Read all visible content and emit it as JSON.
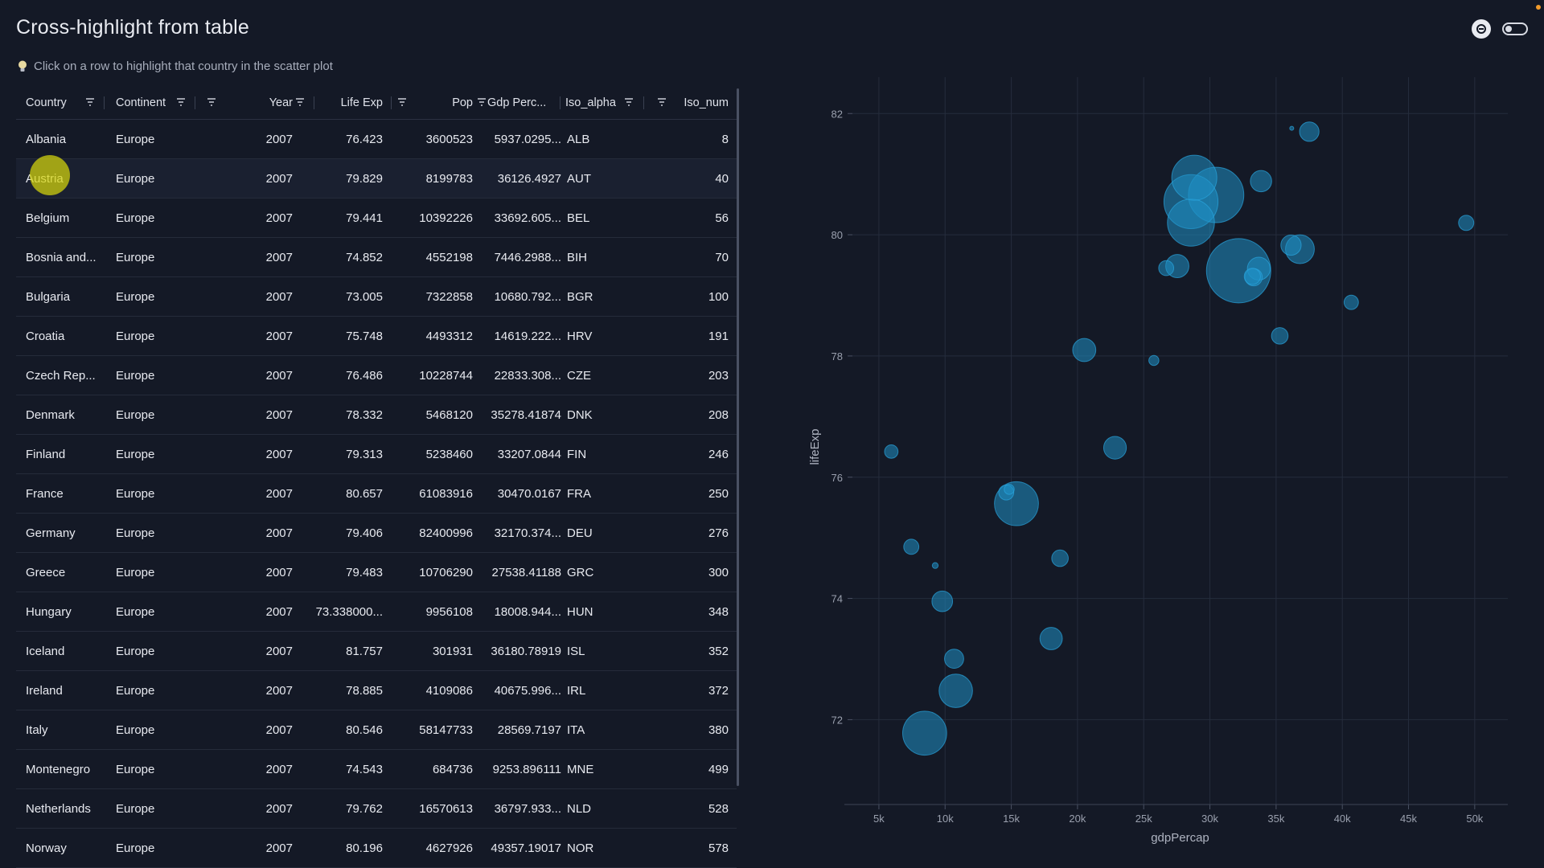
{
  "page": {
    "title": "Cross-highlight from table",
    "hint": "Click on a row to highlight that country in the scatter plot",
    "hint_icon": "lightbulb-icon"
  },
  "toolbar": {
    "icons": [
      "theme-icon",
      "toggle-switch"
    ],
    "toggle_on": false
  },
  "table": {
    "columns": [
      "Country",
      "Continent",
      "Year",
      "Life Exp",
      "Pop",
      "Gdp Perc...",
      "Iso_alpha",
      "Iso_num"
    ],
    "rows": [
      [
        "Albania",
        "Europe",
        "2007",
        "76.423",
        "3600523",
        "5937.0295...",
        "ALB",
        "8"
      ],
      [
        "Austria",
        "Europe",
        "2007",
        "79.829",
        "8199783",
        "36126.4927",
        "AUT",
        "40"
      ],
      [
        "Belgium",
        "Europe",
        "2007",
        "79.441",
        "10392226",
        "33692.605...",
        "BEL",
        "56"
      ],
      [
        "Bosnia and...",
        "Europe",
        "2007",
        "74.852",
        "4552198",
        "7446.2988...",
        "BIH",
        "70"
      ],
      [
        "Bulgaria",
        "Europe",
        "2007",
        "73.005",
        "7322858",
        "10680.792...",
        "BGR",
        "100"
      ],
      [
        "Croatia",
        "Europe",
        "2007",
        "75.748",
        "4493312",
        "14619.222...",
        "HRV",
        "191"
      ],
      [
        "Czech Rep...",
        "Europe",
        "2007",
        "76.486",
        "10228744",
        "22833.308...",
        "CZE",
        "203"
      ],
      [
        "Denmark",
        "Europe",
        "2007",
        "78.332",
        "5468120",
        "35278.41874",
        "DNK",
        "208"
      ],
      [
        "Finland",
        "Europe",
        "2007",
        "79.313",
        "5238460",
        "33207.0844",
        "FIN",
        "246"
      ],
      [
        "France",
        "Europe",
        "2007",
        "80.657",
        "61083916",
        "30470.0167",
        "FRA",
        "250"
      ],
      [
        "Germany",
        "Europe",
        "2007",
        "79.406",
        "82400996",
        "32170.374...",
        "DEU",
        "276"
      ],
      [
        "Greece",
        "Europe",
        "2007",
        "79.483",
        "10706290",
        "27538.41188",
        "GRC",
        "300"
      ],
      [
        "Hungary",
        "Europe",
        "2007",
        "73.338000...",
        "9956108",
        "18008.944...",
        "HUN",
        "348"
      ],
      [
        "Iceland",
        "Europe",
        "2007",
        "81.757",
        "301931",
        "36180.78919",
        "ISL",
        "352"
      ],
      [
        "Ireland",
        "Europe",
        "2007",
        "78.885",
        "4109086",
        "40675.996...",
        "IRL",
        "372"
      ],
      [
        "Italy",
        "Europe",
        "2007",
        "80.546",
        "58147733",
        "28569.7197",
        "ITA",
        "380"
      ],
      [
        "Montenegro",
        "Europe",
        "2007",
        "74.543",
        "684736",
        "9253.896111",
        "MNE",
        "499"
      ],
      [
        "Netherlands",
        "Europe",
        "2007",
        "79.762",
        "16570613",
        "36797.933...",
        "NLD",
        "528"
      ],
      [
        "Norway",
        "Europe",
        "2007",
        "80.196",
        "4627926",
        "49357.19017",
        "NOR",
        "578"
      ]
    ],
    "hovered_row": 1
  },
  "chart_data": {
    "type": "scatter",
    "xlabel": "gdpPercap",
    "ylabel": "lifeExp",
    "xlim": [
      3000,
      52500
    ],
    "ylim": [
      70.6,
      82.6
    ],
    "x_ticks": [
      "5k",
      "10k",
      "15k",
      "20k",
      "25k",
      "30k",
      "35k",
      "40k",
      "45k",
      "50k"
    ],
    "x_tick_values": [
      5000,
      10000,
      15000,
      20000,
      25000,
      30000,
      35000,
      40000,
      45000,
      50000
    ],
    "y_ticks": [
      "72",
      "74",
      "76",
      "78",
      "80",
      "82"
    ],
    "y_tick_values": [
      72,
      74,
      76,
      78,
      80,
      82
    ],
    "grid": true,
    "marker_color": "#1f8fc4",
    "points": [
      {
        "x": 5937,
        "y": 76.423,
        "pop": 3600523
      },
      {
        "x": 36126,
        "y": 79.829,
        "pop": 8199783
      },
      {
        "x": 33693,
        "y": 79.441,
        "pop": 10392226
      },
      {
        "x": 7446,
        "y": 74.852,
        "pop": 4552198
      },
      {
        "x": 10681,
        "y": 73.005,
        "pop": 7322858
      },
      {
        "x": 14619,
        "y": 75.748,
        "pop": 4493312
      },
      {
        "x": 22833,
        "y": 76.486,
        "pop": 10228744
      },
      {
        "x": 35278,
        "y": 78.332,
        "pop": 5468120
      },
      {
        "x": 33207,
        "y": 79.313,
        "pop": 5238460
      },
      {
        "x": 30470,
        "y": 80.657,
        "pop": 61083916
      },
      {
        "x": 32170,
        "y": 79.406,
        "pop": 82400996
      },
      {
        "x": 27538,
        "y": 79.483,
        "pop": 10706290
      },
      {
        "x": 18009,
        "y": 73.338,
        "pop": 9956108
      },
      {
        "x": 36181,
        "y": 81.757,
        "pop": 301931
      },
      {
        "x": 40676,
        "y": 78.885,
        "pop": 4109086
      },
      {
        "x": 28570,
        "y": 80.546,
        "pop": 58147733
      },
      {
        "x": 9254,
        "y": 74.543,
        "pop": 684736
      },
      {
        "x": 36798,
        "y": 79.762,
        "pop": 16570613
      },
      {
        "x": 49357,
        "y": 80.196,
        "pop": 4627926
      },
      {
        "x": 8458,
        "y": 71.777,
        "pop": 38518241
      },
      {
        "x": 10808,
        "y": 72.476,
        "pop": 22276056
      },
      {
        "x": 15390,
        "y": 75.563,
        "pop": 38525000
      },
      {
        "x": 18679,
        "y": 74.663,
        "pop": 5447502
      },
      {
        "x": 20510,
        "y": 78.098,
        "pop": 10642836
      },
      {
        "x": 25768,
        "y": 77.926,
        "pop": 2009245
      },
      {
        "x": 28821,
        "y": 80.941,
        "pop": 40448191
      },
      {
        "x": 28569,
        "y": 80.2,
        "pop": 44000000
      },
      {
        "x": 33860,
        "y": 80.884,
        "pop": 9031088
      },
      {
        "x": 37506,
        "y": 81.701,
        "pop": 7554661
      },
      {
        "x": 9786,
        "y": 73.952,
        "pop": 8500000
      },
      {
        "x": 14843,
        "y": 75.8,
        "pop": 2000000
      },
      {
        "x": 26700,
        "y": 79.45,
        "pop": 4500000
      },
      {
        "x": 33300,
        "y": 79.3,
        "pop": 6000000
      }
    ]
  }
}
